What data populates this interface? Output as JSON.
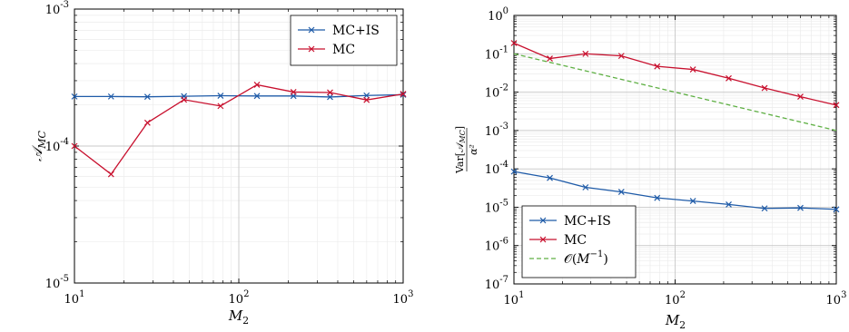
{
  "chart_data": [
    {
      "type": "line",
      "xscale": "log",
      "yscale": "log",
      "xlim": [
        10,
        1000
      ],
      "ylim": [
        1e-05,
        0.001
      ],
      "xlabel": "M2",
      "ylabel": "A_MC",
      "xticks": [
        10,
        100,
        1000
      ],
      "yticks": [
        1e-05,
        0.0001,
        0.001
      ],
      "grid": true,
      "legend": "top-right",
      "series": [
        {
          "name": "MC+IS",
          "color": "#1f5ba8",
          "marker": "x",
          "x": [
            10,
            16.7,
            27.8,
            46.4,
            77.4,
            129,
            215,
            359,
            599,
            1000
          ],
          "y": [
            0.00023,
            0.00023,
            0.000229,
            0.000231,
            0.000233,
            0.000232,
            0.000232,
            0.000228,
            0.000234,
            0.000237
          ]
        },
        {
          "name": "MC",
          "color": "#c8102e",
          "marker": "x",
          "x": [
            10,
            16.7,
            27.8,
            46.4,
            77.4,
            129,
            215,
            359,
            599,
            1000
          ],
          "y": [
            0.0001,
            6.23e-05,
            0.000148,
            0.000218,
            0.000196,
            0.00028,
            0.000248,
            0.000246,
            0.000217,
            0.00024
          ]
        }
      ]
    },
    {
      "type": "line",
      "xscale": "log",
      "yscale": "log",
      "xlim": [
        10,
        1000
      ],
      "ylim": [
        1e-07,
        1
      ],
      "xlabel": "M2",
      "ylabel": "Var[A_MC] / α²",
      "xticks": [
        10,
        100,
        1000
      ],
      "yticks": [
        1e-07,
        1e-06,
        1e-05,
        0.0001,
        0.001,
        0.01,
        0.1,
        1
      ],
      "grid": true,
      "legend": "bottom-left",
      "series": [
        {
          "name": "MC+IS",
          "color": "#1f5ba8",
          "marker": "x",
          "dash": false,
          "x": [
            10,
            16.7,
            27.8,
            46.4,
            77.4,
            129,
            215,
            359,
            599,
            1000
          ],
          "y": [
            8.5e-05,
            5.8e-05,
            3.3e-05,
            2.5e-05,
            1.75e-05,
            1.45e-05,
            1.18e-05,
            9.3e-06,
            9.6e-06,
            8.8e-06
          ]
        },
        {
          "name": "MC",
          "color": "#c8102e",
          "marker": "x",
          "dash": false,
          "x": [
            10,
            16.7,
            27.8,
            46.4,
            77.4,
            129,
            215,
            359,
            599,
            1000
          ],
          "y": [
            0.19,
            0.075,
            0.1,
            0.088,
            0.047,
            0.039,
            0.023,
            0.0128,
            0.0076,
            0.0046
          ]
        },
        {
          "name": "O(M^-1)",
          "color": "#5fb044",
          "marker": "none",
          "dash": true,
          "x": [
            10,
            1000
          ],
          "y": [
            0.1,
            0.001
          ]
        }
      ]
    }
  ]
}
